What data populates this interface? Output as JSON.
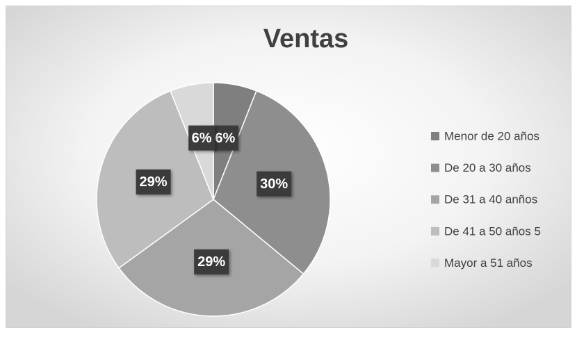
{
  "chart_data": {
    "type": "pie",
    "title": "Ventas",
    "categories": [
      "Menor de 20 años",
      "De 20 a 30 años",
      "De 31 a 40 anños",
      "De 41 a 50 años 5",
      "Mayor a 51 años"
    ],
    "values": [
      6,
      30,
      29,
      29,
      6
    ],
    "value_labels": [
      "6%",
      "30%",
      "29%",
      "29%",
      "6%"
    ],
    "colors": [
      "#7f7f7f",
      "#8e8e8e",
      "#a5a5a5",
      "#bdbdbd",
      "#d9d9d9"
    ],
    "legend": "right"
  }
}
